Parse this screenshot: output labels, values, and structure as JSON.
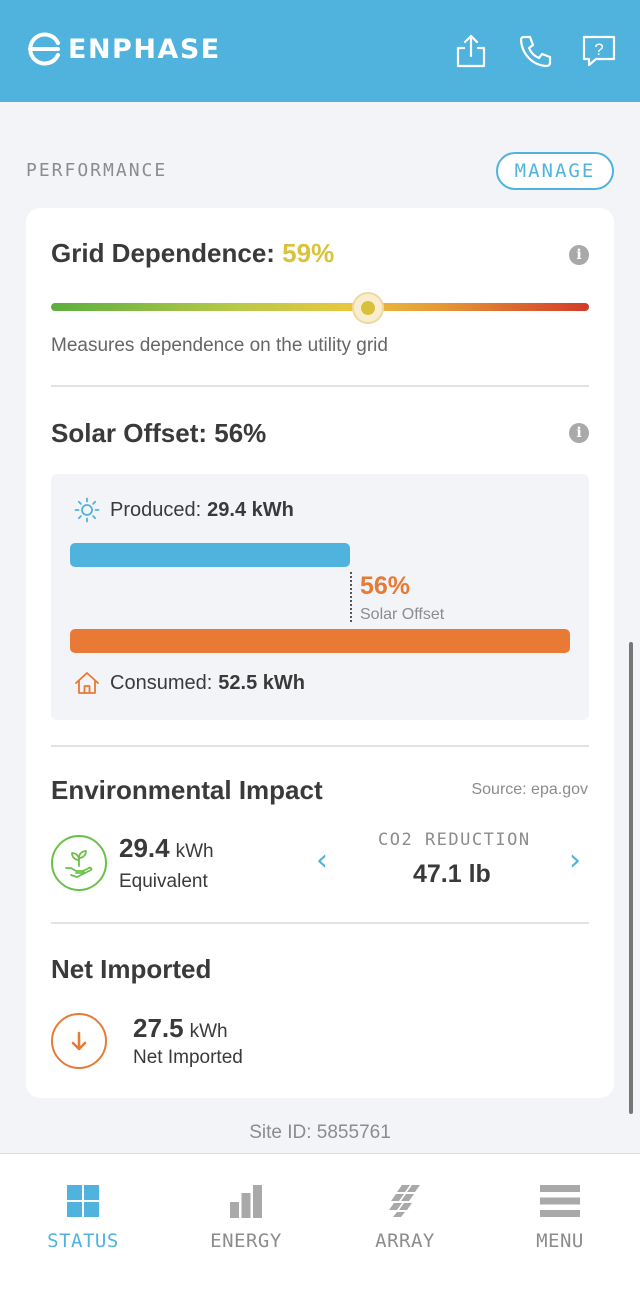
{
  "header": {
    "brand": "ENPHASE",
    "icons": [
      "share-icon",
      "phone-icon",
      "help-icon"
    ]
  },
  "performance": {
    "section_title": "PERFORMANCE",
    "manage_label": "MANAGE"
  },
  "grid_dependence": {
    "title": "Grid Dependence:",
    "value": "59%",
    "level": 0.59,
    "description": "Measures dependence on the utility grid"
  },
  "solar_offset": {
    "title": "Solar Offset: 56%",
    "produced_label": "Produced:",
    "produced_value": "29.4 kWh",
    "consumed_label": "Consumed:",
    "consumed_value": "52.5 kWh",
    "offset_pct": "56%",
    "offset_sub": "Solar Offset",
    "produced_kwh": 29.4,
    "consumed_kwh": 52.5
  },
  "environmental": {
    "title": "Environmental Impact",
    "source": "Source: epa.gov",
    "kwh_value": "29.4",
    "kwh_unit": "kWh",
    "kwh_sub": "Equivalent",
    "prev_chevron": "‹",
    "next_chevron": "›",
    "co2_label": "CO2 REDUCTION",
    "co2_value": "47.1 lb"
  },
  "net_imported": {
    "title": "Net Imported",
    "value": "27.5",
    "unit": "kWh",
    "sub": "Net Imported"
  },
  "site": {
    "id_label": "Site ID: 5855761"
  },
  "tabs": [
    {
      "label": "STATUS",
      "icon": "status-grid-icon",
      "active": true
    },
    {
      "label": "ENERGY",
      "icon": "energy-bars-icon",
      "active": false
    },
    {
      "label": "ARRAY",
      "icon": "array-panels-icon",
      "active": false
    },
    {
      "label": "MENU",
      "icon": "menu-icon",
      "active": false
    }
  ],
  "colors": {
    "brand_blue": "#4fb3dd",
    "grid_yellow": "#d9c23c",
    "consumed_orange": "#e87a35",
    "env_green": "#6cc04a"
  }
}
